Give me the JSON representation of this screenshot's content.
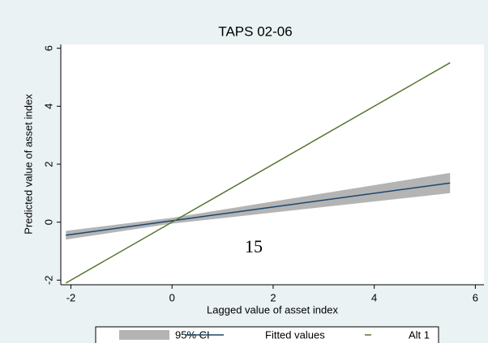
{
  "chart_data": {
    "type": "line",
    "title": "TAPS 02-06",
    "x_label": "Lagged value of asset index",
    "y_label": "Predicted value of asset index",
    "x": [
      -2.1,
      0,
      5.5
    ],
    "series": [
      {
        "name": "95% CI",
        "color": "#b4b4b4",
        "lower": [
          -0.6,
          -0.05,
          1.0
        ],
        "upper": [
          -0.3,
          0.15,
          1.7
        ]
      },
      {
        "name": "Fitted values",
        "color": "#1a476f",
        "values": [
          -0.45,
          0.05,
          1.35
        ]
      },
      {
        "name": "Alt 1",
        "color": "#55752f",
        "values": [
          -2.1,
          0,
          5.5
        ]
      }
    ],
    "xlim": [
      -2.2,
      6.17
    ],
    "xticks": [
      -2,
      0,
      2,
      4,
      6
    ],
    "ylim": [
      -2.16,
      6.13
    ],
    "yticks": [
      -2,
      0,
      2,
      4,
      6
    ],
    "annotation": "15"
  }
}
